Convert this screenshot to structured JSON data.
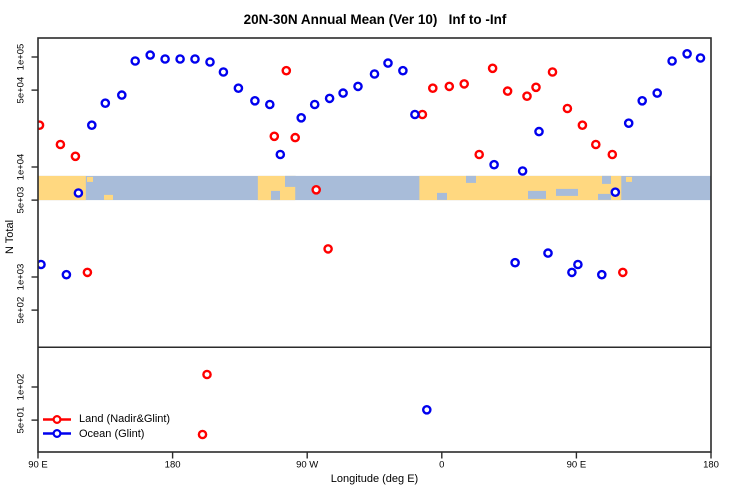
{
  "chart_data": {
    "type": "scatter",
    "title": "20N-30N Annual Mean (Ver 10)   Inf to -Inf",
    "xlabel": "Longitude (deg E)",
    "ylabel": "N Total",
    "xlim": [
      90,
      540
    ],
    "x_axis": {
      "ticks": [
        {
          "label": "90 E",
          "lon": 90
        },
        {
          "label": "180",
          "lon": 180
        },
        {
          "label": "90 W",
          "lon": 270
        },
        {
          "label": "0",
          "lon": 360
        },
        {
          "label": "90 E",
          "lon": 450
        },
        {
          "label": "180",
          "lon": 540
        }
      ]
    },
    "y_axis": {
      "scale": "log",
      "ticks": [
        {
          "label": "1e+05",
          "value": 100000
        },
        {
          "label": "5e+04",
          "value": 50000
        },
        {
          "label": "1e+04",
          "value": 10000
        },
        {
          "label": "5e+03",
          "value": 5000
        },
        {
          "label": "1e+03",
          "value": 1000
        },
        {
          "label": "5e+02",
          "value": 500
        },
        {
          "label": "1e+02",
          "value": 100
        },
        {
          "label": "5e+01",
          "value": 50
        }
      ]
    },
    "panel_divider_value": 230,
    "map_band": {
      "description": "world coastline strip for 20N-30N latitude band",
      "value_top": 8300,
      "value_bottom": 5000,
      "ocean_color": "#a8bcd9",
      "land_color": "#ffd880",
      "land_segments_lon": [
        [
          90,
          122
        ],
        [
          237,
          262
        ],
        [
          345,
          480
        ]
      ]
    },
    "legend_position": "bottom-left",
    "series": [
      {
        "name": "Land (Nadir&Glint)",
        "color": "#ff0000",
        "marker": "open-circle",
        "points": [
          [
            91,
            24000
          ],
          [
            105,
            16000
          ],
          [
            115,
            12500
          ],
          [
            123,
            1100
          ],
          [
            200,
            37
          ],
          [
            203,
            130
          ],
          [
            248,
            19000
          ],
          [
            256,
            75000
          ],
          [
            262,
            18500
          ],
          [
            276,
            6200
          ],
          [
            284,
            1800
          ],
          [
            347,
            30000
          ],
          [
            354,
            52000
          ],
          [
            365,
            54000
          ],
          [
            375,
            57000
          ],
          [
            385,
            13000
          ],
          [
            394,
            79000
          ],
          [
            404,
            49000
          ],
          [
            417,
            44000
          ],
          [
            423,
            53000
          ],
          [
            434,
            73000
          ],
          [
            444,
            34000
          ],
          [
            454,
            24000
          ],
          [
            463,
            16000
          ],
          [
            474,
            13000
          ],
          [
            481,
            1100
          ]
        ]
      },
      {
        "name": "Ocean (Glint)",
        "color": "#0000ee",
        "marker": "open-circle",
        "points": [
          [
            126,
            24000
          ],
          [
            135,
            38000
          ],
          [
            146,
            45000
          ],
          [
            155,
            92000
          ],
          [
            165,
            104000
          ],
          [
            175,
            96000
          ],
          [
            185,
            96000
          ],
          [
            195,
            96000
          ],
          [
            205,
            90000
          ],
          [
            214,
            73000
          ],
          [
            224,
            52000
          ],
          [
            235,
            40000
          ],
          [
            245,
            37000
          ],
          [
            252,
            13000
          ],
          [
            266,
            28000
          ],
          [
            275,
            37000
          ],
          [
            285,
            42000
          ],
          [
            294,
            47000
          ],
          [
            304,
            54000
          ],
          [
            315,
            70000
          ],
          [
            324,
            88000
          ],
          [
            334,
            75000
          ],
          [
            342,
            30000
          ],
          [
            117,
            5800
          ],
          [
            476,
            5900
          ],
          [
            92,
            1300
          ],
          [
            109,
            1050
          ],
          [
            350,
            62
          ],
          [
            395,
            10500
          ],
          [
            409,
            1350
          ],
          [
            414,
            9200
          ],
          [
            425,
            21000
          ],
          [
            431,
            1650
          ],
          [
            447,
            1100
          ],
          [
            451,
            1300
          ],
          [
            467,
            1050
          ],
          [
            485,
            25000
          ],
          [
            494,
            40000
          ],
          [
            504,
            47000
          ],
          [
            514,
            92000
          ],
          [
            524,
            107000
          ],
          [
            533,
            98000
          ]
        ]
      }
    ]
  }
}
